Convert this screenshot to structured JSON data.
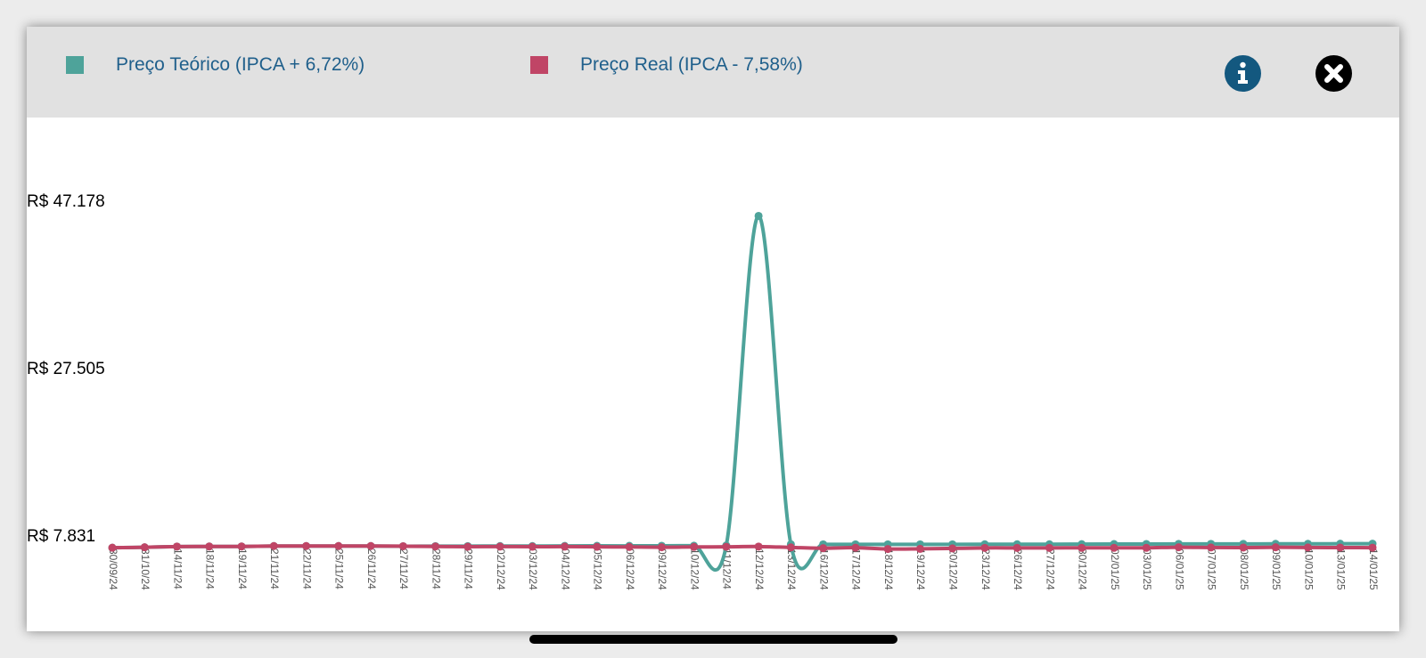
{
  "legend": {
    "items": [
      {
        "label": "Preço Teórico (IPCA + 6,72%)",
        "color": "#4ea39a"
      },
      {
        "label": "Preço Real (IPCA - 7,58%)",
        "color": "#c04566"
      }
    ]
  },
  "icons": {
    "info": "info-icon",
    "close": "close-icon",
    "info_color": "#13587f",
    "close_color": "#000000"
  },
  "chart_data": {
    "type": "line",
    "title": "",
    "xlabel": "",
    "ylabel": "",
    "ylim": [
      7831,
      47178
    ],
    "y_ticks": [
      {
        "value": 7831,
        "label": "R$ 7.831"
      },
      {
        "value": 27505,
        "label": "R$ 27.505"
      },
      {
        "value": 47178,
        "label": "R$ 47.178"
      }
    ],
    "x": [
      "30/09/24",
      "31/10/24",
      "14/11/24",
      "18/11/24",
      "19/11/24",
      "21/11/24",
      "22/11/24",
      "25/11/24",
      "26/11/24",
      "27/11/24",
      "28/11/24",
      "29/11/24",
      "02/12/24",
      "03/12/24",
      "04/12/24",
      "05/12/24",
      "06/12/24",
      "09/12/24",
      "10/12/24",
      "11/12/24",
      "12/12/24",
      "13/12/24",
      "16/12/24",
      "17/12/24",
      "18/12/24",
      "19/12/24",
      "20/12/24",
      "23/12/24",
      "26/12/24",
      "27/12/24",
      "30/12/24",
      "02/01/25",
      "03/01/25",
      "06/01/25",
      "07/01/25",
      "08/01/25",
      "09/01/25",
      "10/01/25",
      "13/01/25",
      "14/01/25"
    ],
    "series": [
      {
        "name": "Preço Teórico (IPCA + 6,72%)",
        "color": "#4ea39a",
        "values": [
          7500,
          7550,
          7640,
          7650,
          7650,
          7700,
          7700,
          7700,
          7700,
          7680,
          7690,
          7690,
          7700,
          7700,
          7710,
          7720,
          7720,
          7730,
          7740,
          7760,
          46500,
          7900,
          7900,
          7900,
          7900,
          7900,
          7900,
          7910,
          7910,
          7910,
          7920,
          7930,
          7940,
          7950,
          7950,
          7950,
          7960,
          7960,
          7970,
          7980
        ]
      },
      {
        "name": "Preço Real (IPCA - 7,58%)",
        "color": "#c04566",
        "values": [
          7500,
          7550,
          7640,
          7650,
          7650,
          7700,
          7700,
          7700,
          7700,
          7680,
          7650,
          7620,
          7640,
          7620,
          7630,
          7610,
          7590,
          7560,
          7590,
          7610,
          7640,
          7540,
          7450,
          7510,
          7350,
          7370,
          7420,
          7480,
          7480,
          7480,
          7490,
          7490,
          7490,
          7560,
          7530,
          7520,
          7550,
          7530,
          7520,
          7510
        ]
      }
    ]
  }
}
